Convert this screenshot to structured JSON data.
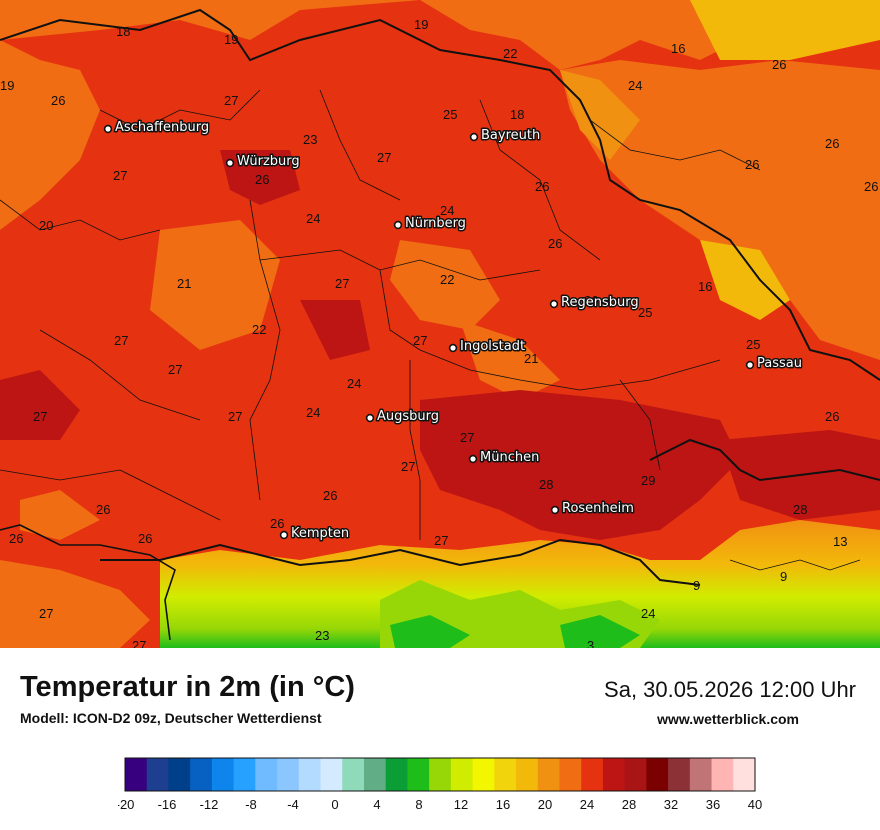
{
  "title": "Temperatur in 2m (in °C)",
  "subtitle": "Modell: ICON-D2 09z, Deutscher Wetterdienst",
  "datetime": "Sa, 30.05.2026 12:00 Uhr",
  "website": "www.wetterblick.com",
  "cities": [
    {
      "name": "Aschaffenburg"
    },
    {
      "name": "Würzburg"
    },
    {
      "name": "Bayreuth"
    },
    {
      "name": "Nürnberg"
    },
    {
      "name": "Regensburg"
    },
    {
      "name": "Ingolstadt"
    },
    {
      "name": "Passau"
    },
    {
      "name": "Augsburg"
    },
    {
      "name": "München"
    },
    {
      "name": "Rosenheim"
    },
    {
      "name": "Kempten"
    }
  ],
  "temperature_labels": [
    "18",
    "19",
    "19",
    "19",
    "22",
    "16",
    "26",
    "26",
    "27",
    "24",
    "25",
    "18",
    "23",
    "27",
    "26",
    "27",
    "26",
    "26",
    "26",
    "20",
    "24",
    "26",
    "26",
    "21",
    "27",
    "22",
    "16",
    "22",
    "27",
    "25",
    "25",
    "27",
    "27",
    "21",
    "27",
    "27",
    "24",
    "24",
    "26",
    "27",
    "27",
    "27",
    "26",
    "28",
    "29",
    "28",
    "26",
    "26",
    "26",
    "26",
    "27",
    "13",
    "9",
    "9",
    "26",
    "24",
    "23",
    "27",
    "3"
  ],
  "legend": {
    "ticks": [
      "-20",
      "-16",
      "-12",
      "-8",
      "-4",
      "0",
      "4",
      "8",
      "12",
      "16",
      "20",
      "24",
      "28",
      "32",
      "36",
      "40"
    ],
    "colors": [
      "#37007f",
      "#1e3e90",
      "#003f8a",
      "#0661c2",
      "#0d85ec",
      "#27a1ff",
      "#70bbff",
      "#8bc6ff",
      "#b3dbff",
      "#d4eaff",
      "#8fdbb9",
      "#61ad85",
      "#0c9e36",
      "#1ebd1a",
      "#97d707",
      "#d0ec00",
      "#f2f700",
      "#f1d40b",
      "#f2b90a",
      "#f19112",
      "#f06d14",
      "#e53210",
      "#bd1514",
      "#a91414",
      "#7b0000",
      "#8c3237",
      "#c17476",
      "#ffb5b3",
      "#ffe0de"
    ]
  }
}
